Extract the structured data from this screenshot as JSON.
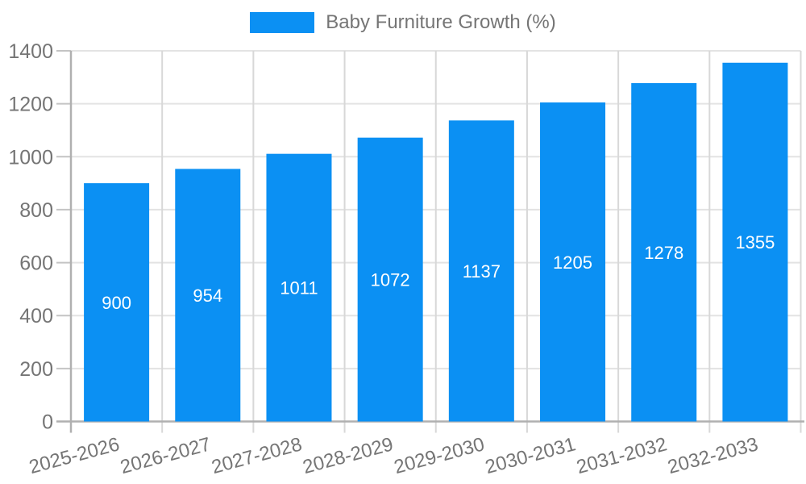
{
  "chart_data": {
    "type": "bar",
    "title": "Baby Furniture Growth (%)",
    "series_name": "Baby Furniture Growth (%)",
    "categories": [
      "2025-2026",
      "2026-2027",
      "2027-2028",
      "2028-2029",
      "2029-2030",
      "2030-2031",
      "2031-2032",
      "2032-2033"
    ],
    "values": [
      900,
      954,
      1011,
      1072,
      1137,
      1205,
      1278,
      1355
    ],
    "xlabel": "",
    "ylabel": "",
    "ylim": [
      0,
      1400
    ],
    "yticks": [
      0,
      200,
      400,
      600,
      800,
      1000,
      1200,
      1400
    ],
    "grid": true,
    "legend_position": "top-center",
    "x_label_rotation_deg": -15,
    "colors": {
      "bar": "#0b90f3",
      "value_label": "#ffffff",
      "axis_text": "#757575",
      "h_gridline": "#e3e3e3",
      "v_gridline": "#d8d8d8",
      "tick": "#c4c4c4",
      "axis_line": "#b0b0b0",
      "background": "#ffffff"
    }
  }
}
